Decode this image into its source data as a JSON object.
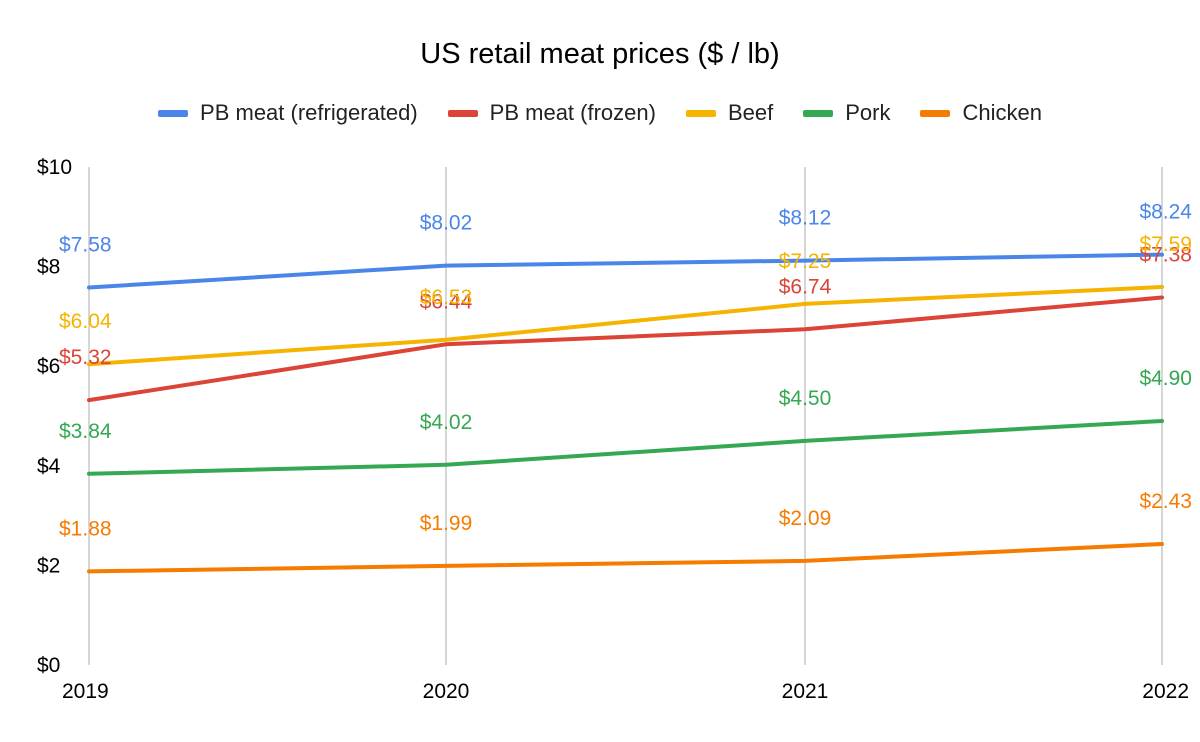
{
  "chart_data": {
    "type": "line",
    "title": "US retail meat prices ($ / lb)",
    "xlabel": "",
    "ylabel": "",
    "x": [
      "2019",
      "2020",
      "2021",
      "2022"
    ],
    "ylim": [
      0,
      10
    ],
    "yticks": [
      "$0",
      "$2",
      "$4",
      "$6",
      "$8",
      "$10"
    ],
    "grid": "vertical",
    "legend_position": "top",
    "series": [
      {
        "name": "PB meat (refrigerated)",
        "color": "#4a86e8",
        "values": [
          7.58,
          8.02,
          8.12,
          8.24
        ],
        "labels": [
          "$7.58",
          "$8.02",
          "$8.12",
          "$8.24"
        ]
      },
      {
        "name": "PB meat (frozen)",
        "color": "#db4437",
        "values": [
          5.32,
          6.44,
          6.74,
          7.38
        ],
        "labels": [
          "$5.32",
          "$6.44",
          "$6.74",
          "$7.38"
        ]
      },
      {
        "name": "Beef",
        "color": "#f4b400",
        "values": [
          6.04,
          6.53,
          7.25,
          7.59
        ],
        "labels": [
          "$6.04",
          "$6.53",
          "$7.25",
          "$7.59"
        ]
      },
      {
        "name": "Pork",
        "color": "#34a853",
        "values": [
          3.84,
          4.02,
          4.5,
          4.9
        ],
        "labels": [
          "$3.84",
          "$4.02",
          "$4.50",
          "$4.90"
        ]
      },
      {
        "name": "Chicken",
        "color": "#f57c00",
        "values": [
          1.88,
          1.99,
          2.09,
          2.43
        ],
        "labels": [
          "$1.88",
          "$1.99",
          "$2.09",
          "$2.43"
        ]
      }
    ]
  }
}
